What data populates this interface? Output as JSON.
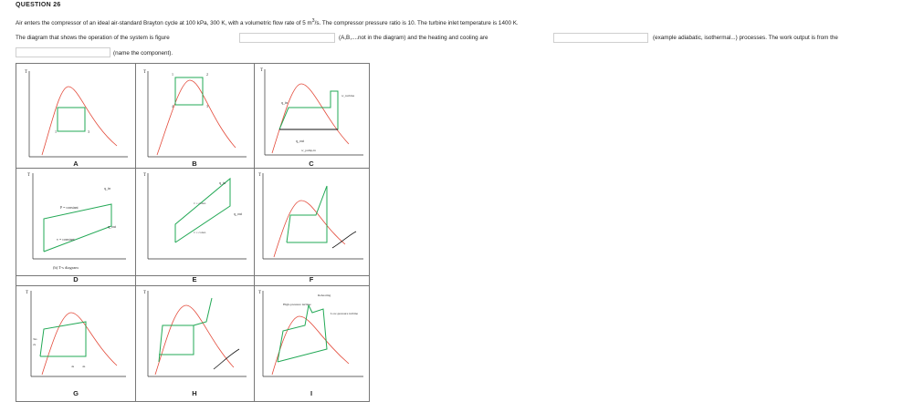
{
  "question": {
    "title": "QUESTION 26",
    "line1_pre": "Air enters the compressor of an ideal air-standard Brayton cycle at 100 kPa, 300 K, with a volumetric flow rate of 5 m",
    "line1_sup": "3",
    "line1_post": "/s. The compressor pressure ratio is 10. The turbine inlet temperature is 1400 K.",
    "line2_a": "The diagram that shows the operation of the system is figure",
    "line2_b": "(A,B,....not in the diagram) and the heating and cooling are",
    "line2_c": "(example adiabatic, isothermal...) processes. The work output is from the",
    "line3": "(name the component)."
  },
  "answers": {
    "figure": "",
    "processes": "",
    "component": ""
  },
  "figures": {
    "labels": [
      "A",
      "B",
      "C",
      "D",
      "E",
      "F",
      "G",
      "H",
      "I"
    ],
    "c_qin": "q_in",
    "c_qout": "q_out",
    "c_wturbine": "w_turbine",
    "c_wpump": "w_pump,in",
    "d_pconst": "P = constant",
    "d_vconst": "v = constant",
    "d_qin": "q_in",
    "d_qout": "q_out",
    "d_caption": "(b) T-s diagram",
    "e_vconst": "v = const.",
    "e_vconst2": "v = const.",
    "e_qin": "q_in",
    "e_qout": "q_out",
    "g_3ss": "3ss",
    "g_2s": "2s",
    "g_4s": "4s",
    "g_4a": "4a",
    "i_hp": "High-pressure turbine",
    "i_reheat": "Reheating",
    "i_lp": "Low-pressure turbine",
    "axis_T": "T",
    "axis_s": "s"
  },
  "colors": {
    "dome": "#e34a3a",
    "cycle": "#22a855",
    "axis": "#333333",
    "arrow": "#e06a3a"
  }
}
